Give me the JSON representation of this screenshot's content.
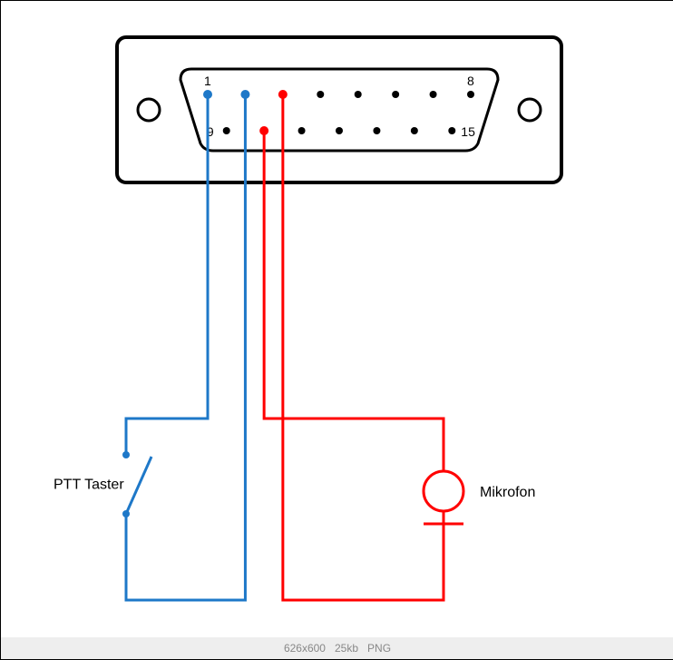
{
  "diagram": {
    "type": "wiring-schematic",
    "background_color": "#ffffff",
    "connector": {
      "label_pin1": "1",
      "label_pin8": "8",
      "label_pin9": "9",
      "label_pin15": "15",
      "outline_color": "#000000",
      "outline_width": 4,
      "pin_color": "#000000",
      "pin_radius": 4,
      "top_row_pins": 8,
      "bottom_row_pins": 7,
      "label_fontsize": 14,
      "label_color": "#000000"
    },
    "ptt": {
      "label": "PTT Taster",
      "color": "#1e78c8",
      "line_width": 3,
      "dot_radius": 5
    },
    "mic": {
      "label": "Mikrofon",
      "color": "#ff0000",
      "line_width": 3,
      "dot_radius": 5,
      "circle_radius": 22
    },
    "label_fontsize": 16,
    "label_color": "#000000"
  },
  "meta": {
    "dimensions": "626x600",
    "size": "25kb",
    "format": "PNG"
  }
}
